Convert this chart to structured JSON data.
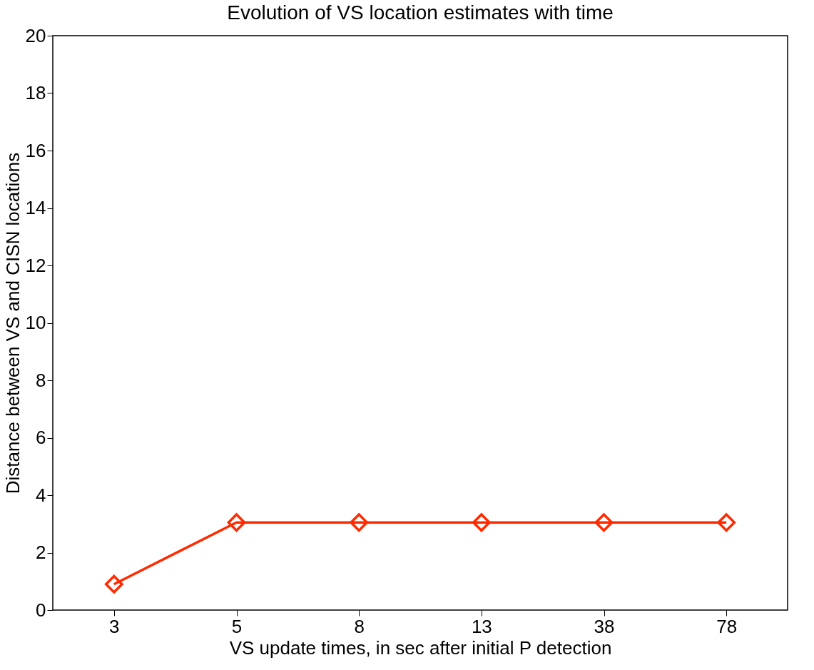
{
  "chart_data": {
    "type": "line",
    "title": "Evolution of VS location estimates with time",
    "xlabel": "VS update times, in sec after initial P detection",
    "ylabel": "Distance between VS and CISN locations",
    "categories": [
      "3",
      "5",
      "8",
      "13",
      "38",
      "78"
    ],
    "series": [
      {
        "color": "#ff2a00",
        "values": [
          0.9,
          3.05,
          3.05,
          3.05,
          3.05,
          3.05
        ]
      }
    ],
    "ylim": [
      0,
      20
    ],
    "yticks": [
      0,
      2,
      4,
      6,
      8,
      10,
      12,
      14,
      16,
      18,
      20
    ],
    "grid": false,
    "marker": "diamond",
    "line_style": "solid"
  }
}
